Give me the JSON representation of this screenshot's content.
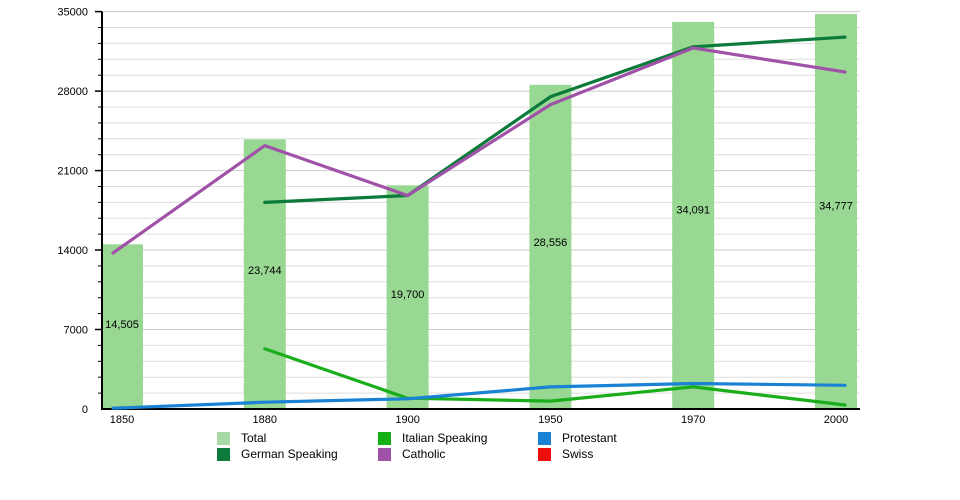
{
  "chart_data": {
    "type": "combo_bar_line",
    "title": "",
    "xlabel": "",
    "ylabel": "",
    "categories": [
      "1850",
      "1880",
      "1900",
      "1950",
      "1970",
      "2000"
    ],
    "bar_series": {
      "name": "Total",
      "color": "#98d893",
      "values": [
        14505,
        23744,
        19700,
        28556,
        34091,
        34777
      ],
      "value_labels": [
        "14,505",
        "23,744",
        "19,700",
        "28,556",
        "34,091",
        "34,777"
      ]
    },
    "line_series": [
      {
        "name": "German Speaking",
        "color": "#0c7a3a",
        "values": [
          null,
          18200,
          18800,
          27500,
          31900,
          32700
        ]
      },
      {
        "name": "Italian Speaking",
        "color": "#1bae1b",
        "values": [
          null,
          5300,
          950,
          700,
          1950,
          450
        ]
      },
      {
        "name": "Catholic",
        "color": "#a051a8",
        "values": [
          14300,
          23200,
          18800,
          26800,
          31800,
          29800
        ]
      },
      {
        "name": "Protestant",
        "color": "#1a82d4",
        "values": [
          100,
          600,
          900,
          1950,
          2250,
          2100
        ]
      },
      {
        "name": "Swiss",
        "color": "#ee0e0e",
        "values": [
          null,
          null,
          null,
          null,
          null,
          null
        ]
      }
    ],
    "ylim": [
      0,
      35000
    ],
    "yticks": [
      0,
      7000,
      14000,
      21000,
      28000,
      35000
    ],
    "ytick_labels": [
      "0",
      "7000",
      "14000",
      "21000",
      "28000",
      "35000"
    ],
    "minor_tick_step": 1400,
    "grid": "horizontal-minor-and-major",
    "legend_position": "bottom"
  },
  "legend": {
    "items": [
      {
        "label": "Total",
        "color": "#a6d9a6"
      },
      {
        "label": "Italian Speaking",
        "color": "#14b014"
      },
      {
        "label": "Protestant",
        "color": "#1a82d4"
      },
      {
        "label": "German Speaking",
        "color": "#0c7a3a"
      },
      {
        "label": "Catholic",
        "color": "#a051a8"
      },
      {
        "label": "Swiss",
        "color": "#ee0e0e"
      }
    ]
  },
  "colors": {
    "background": "#ffffff",
    "axis": "#000000",
    "grid_major": "#cbcbcb",
    "grid_minor": "#dedede",
    "text": "#000000"
  }
}
